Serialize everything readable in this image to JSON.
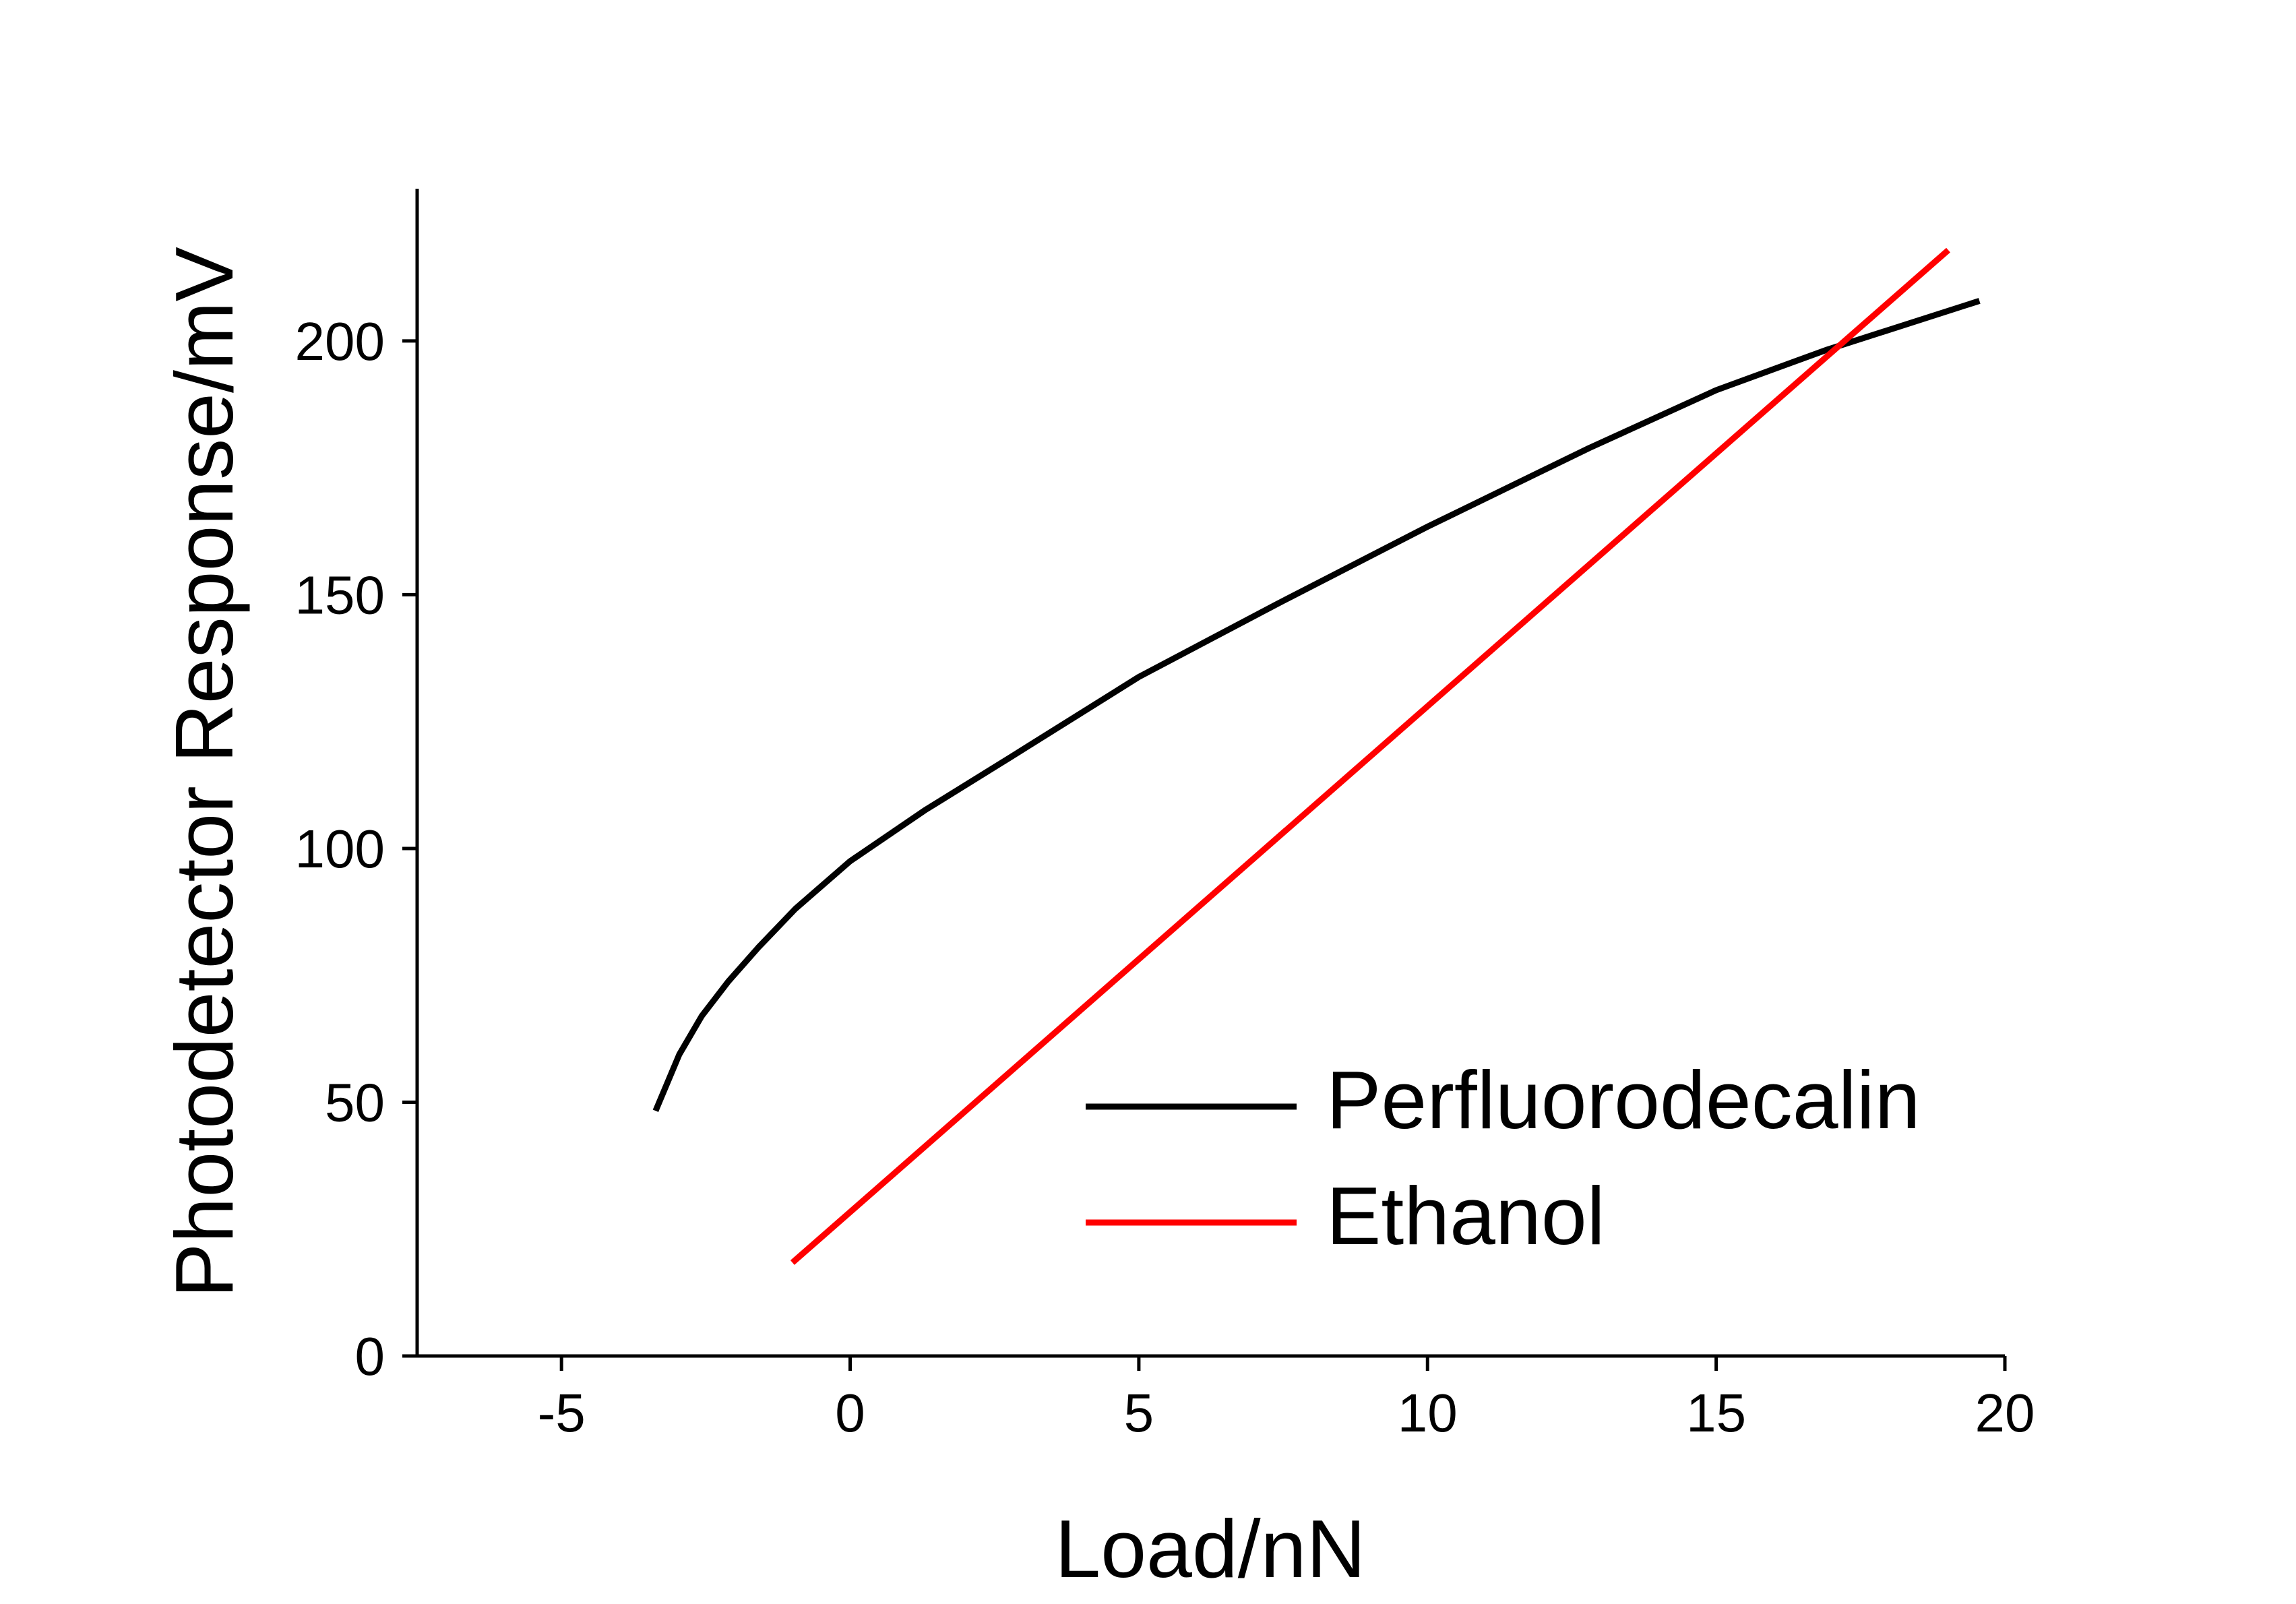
{
  "chart_data": {
    "type": "line",
    "xlabel": "Load/nN",
    "ylabel": "Photodetector Response/mV",
    "xlim": [
      -7.5,
      20
    ],
    "xticks": [
      -5,
      0,
      5,
      10,
      15,
      20
    ],
    "ylim": [
      0,
      230
    ],
    "yticks": [
      0,
      50,
      100,
      150,
      200
    ],
    "grid": false,
    "legend": "lower right",
    "series": [
      {
        "name": "Perfluorodecalin",
        "color": "#000000",
        "x": [
          -3.37,
          -2.96,
          -2.57,
          -2.11,
          -1.59,
          -0.95,
          0,
          1.29,
          2.78,
          5,
          7.4,
          10,
          12.8,
          15,
          16.9,
          19.56
        ],
        "values": [
          48.3,
          59.4,
          67,
          73.8,
          80.5,
          88.1,
          97.5,
          107.5,
          118,
          133.8,
          148.2,
          163.4,
          178.9,
          190.3,
          198.2,
          207.9
        ]
      },
      {
        "name": "Ethanol",
        "color": "#ff0000",
        "x": [
          -1,
          19.02
        ],
        "values": [
          18.4,
          217.9
        ]
      }
    ]
  }
}
